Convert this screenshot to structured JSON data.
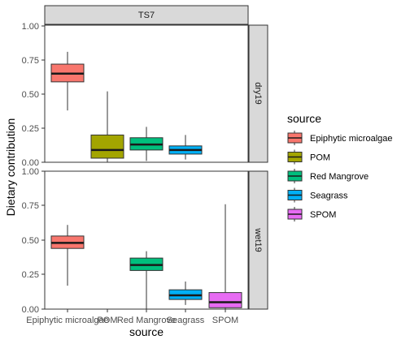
{
  "chart_data": {
    "type": "boxplot",
    "facet_column": "TS7",
    "facet_rows": [
      "dry19",
      "wet19"
    ],
    "xlabel": "source",
    "ylabel": "Dietary contribution",
    "ylim": [
      0,
      1
    ],
    "y_ticks": [
      "0.00",
      "0.25",
      "0.50",
      "0.75",
      "1.00"
    ],
    "categories": [
      "Epiphytic microalgae",
      "POM",
      "Red Mangrove",
      "Seagrass",
      "SPOM"
    ],
    "legend": {
      "title": "source",
      "position": "right",
      "items": [
        {
          "label": "Epiphytic microalgae",
          "color": "#F8766D"
        },
        {
          "label": "POM",
          "color": "#A3A500"
        },
        {
          "label": "Red Mangrove",
          "color": "#00BF7D"
        },
        {
          "label": "Seagrass",
          "color": "#00B0F6"
        },
        {
          "label": "SPOM",
          "color": "#E76BF3"
        }
      ]
    },
    "panels": [
      {
        "row": "dry19",
        "boxes": [
          {
            "category": "Epiphytic microalgae",
            "min": 0.38,
            "q1": 0.59,
            "median": 0.65,
            "q3": 0.72,
            "max": 0.81
          },
          {
            "category": "POM",
            "min": 0.0,
            "q1": 0.03,
            "median": 0.09,
            "q3": 0.2,
            "max": 0.52
          },
          {
            "category": "Red Mangrove",
            "min": 0.01,
            "q1": 0.09,
            "median": 0.13,
            "q3": 0.18,
            "max": 0.26
          },
          {
            "category": "Seagrass",
            "min": 0.02,
            "q1": 0.06,
            "median": 0.09,
            "q3": 0.12,
            "max": 0.2
          }
        ]
      },
      {
        "row": "wet19",
        "boxes": [
          {
            "category": "Epiphytic microalgae",
            "min": 0.17,
            "q1": 0.44,
            "median": 0.48,
            "q3": 0.53,
            "max": 0.61
          },
          {
            "category": "Red Mangrove",
            "min": 0.0,
            "q1": 0.28,
            "median": 0.32,
            "q3": 0.37,
            "max": 0.42
          },
          {
            "category": "Seagrass",
            "min": 0.03,
            "q1": 0.07,
            "median": 0.1,
            "q3": 0.14,
            "max": 0.2
          },
          {
            "category": "SPOM",
            "min": 0.0,
            "q1": 0.01,
            "median": 0.05,
            "q3": 0.12,
            "max": 0.76
          }
        ]
      }
    ]
  }
}
